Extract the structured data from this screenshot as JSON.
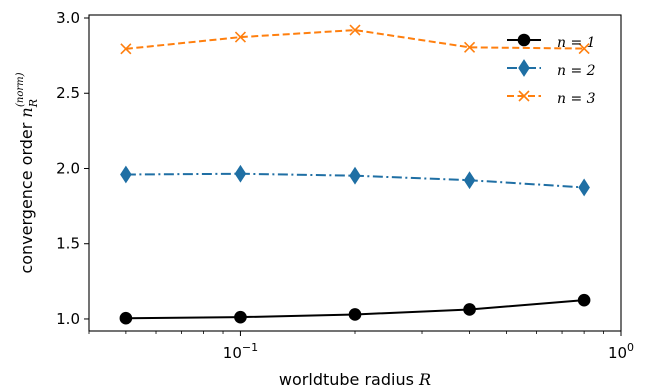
{
  "chart_data": {
    "type": "line",
    "xscale": "log",
    "xlim": [
      0.04,
      1.0
    ],
    "ylim": [
      0.92,
      3.02
    ],
    "x": [
      0.05,
      0.1,
      0.2,
      0.4,
      0.8
    ],
    "xticks": [
      {
        "value": 0.1,
        "base": "10",
        "exp": "−1"
      },
      {
        "value": 1.0,
        "base": "10",
        "exp": "0"
      }
    ],
    "yticks": [
      {
        "value": 1.0,
        "label": "1.0"
      },
      {
        "value": 1.5,
        "label": "1.5"
      },
      {
        "value": 2.0,
        "label": "2.0"
      },
      {
        "value": 2.5,
        "label": "2.5"
      },
      {
        "value": 3.0,
        "label": "3.0"
      }
    ],
    "xlabel": {
      "prefix": "worldtube radius ",
      "symbol": "R"
    },
    "ylabel": {
      "prefix": "convergence order ",
      "symbol": "n",
      "sub": "R",
      "sup": "(norm)"
    },
    "legend_position": "top-right",
    "grid": false,
    "series": [
      {
        "name": "n = 1",
        "values": [
          1.005,
          1.012,
          1.03,
          1.063,
          1.125
        ],
        "color": "#000000",
        "marker": "circle",
        "linestyle": "solid"
      },
      {
        "name": "n = 2",
        "values": [
          1.96,
          1.965,
          1.952,
          1.922,
          1.874
        ],
        "color": "#1f6fa4",
        "marker": "diamond",
        "linestyle": "dashdot"
      },
      {
        "name": "n = 3",
        "values": [
          2.795,
          2.873,
          2.92,
          2.805,
          2.797
        ],
        "color": "#ff7f0e",
        "marker": "x",
        "linestyle": "dashed"
      }
    ]
  }
}
